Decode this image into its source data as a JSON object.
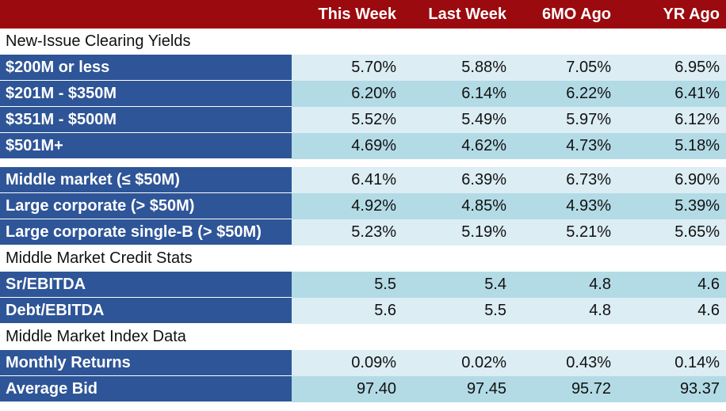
{
  "header": {
    "columns": [
      "This Week",
      "Last Week",
      "6MO Ago",
      "YR Ago"
    ]
  },
  "sections": {
    "new_issue": "New-Issue Clearing Yields",
    "credit_stats": "Middle Market Credit Stats",
    "index_data": "Middle Market Index Data"
  },
  "rows": [
    {
      "label": "$200M or less",
      "values": [
        "5.70%",
        "5.88%",
        "7.05%",
        "6.95%"
      ]
    },
    {
      "label": "$201M - $350M",
      "values": [
        "6.20%",
        "6.14%",
        "6.22%",
        "6.41%"
      ]
    },
    {
      "label": "$351M - $500M",
      "values": [
        "5.52%",
        "5.49%",
        "5.97%",
        "6.12%"
      ]
    },
    {
      "label": "$501M+",
      "values": [
        "4.69%",
        "4.62%",
        "4.73%",
        "5.18%"
      ]
    },
    {
      "label": "Middle market (≤ $50M)",
      "values": [
        "6.41%",
        "6.39%",
        "6.73%",
        "6.90%"
      ]
    },
    {
      "label": "Large corporate (> $50M)",
      "values": [
        "4.92%",
        "4.85%",
        "4.93%",
        "5.39%"
      ]
    },
    {
      "label": "Large corporate single-B (> $50M)",
      "values": [
        "5.23%",
        "5.19%",
        "5.21%",
        "5.65%"
      ]
    },
    {
      "label": "Sr/EBITDA",
      "values": [
        "5.5",
        "5.4",
        "4.8",
        "4.6"
      ]
    },
    {
      "label": "Debt/EBITDA",
      "values": [
        "5.6",
        "5.5",
        "4.8",
        "4.6"
      ]
    },
    {
      "label": "Monthly Returns",
      "values": [
        "0.09%",
        "0.02%",
        "0.43%",
        "0.14%"
      ]
    },
    {
      "label": "Average Bid",
      "values": [
        "97.40",
        "97.45",
        "95.72",
        "93.37"
      ]
    }
  ],
  "colors": {
    "header_bg": "#9b0a0e",
    "label_bg": "#2e5597",
    "row_light": "#dcedf4",
    "row_dark": "#b3dbe6"
  }
}
